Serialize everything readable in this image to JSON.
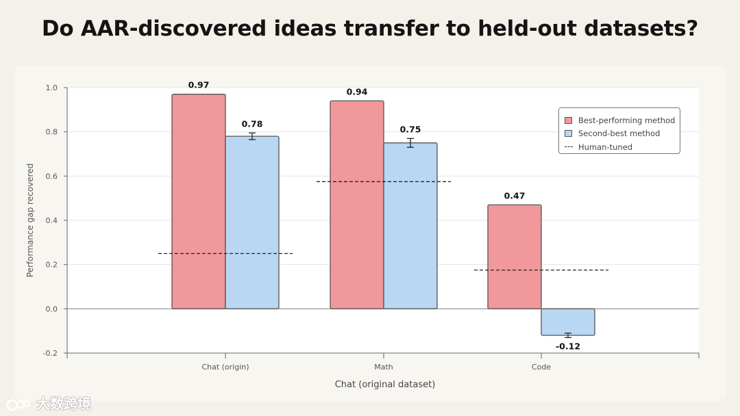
{
  "title": "Do AAR-discovered ideas transfer to held-out datasets?",
  "watermark": "大数跨境",
  "colors": {
    "best": "#f0989a",
    "second": "#b9d6f2",
    "outline": "#555555",
    "human": "#222222"
  },
  "chart_data": {
    "type": "bar",
    "categories": [
      "Chat (origin)",
      "Math",
      "Code"
    ],
    "series": [
      {
        "name": "Best-performing method",
        "values": [
          0.97,
          0.94,
          0.47
        ],
        "labels": [
          "0.97",
          "0.94",
          "0.47"
        ]
      },
      {
        "name": "Second-best method",
        "values": [
          0.78,
          0.75,
          -0.12
        ],
        "labels": [
          "0.78",
          "0.75",
          "-0.12"
        ],
        "error": [
          0.015,
          0.02,
          0.01
        ]
      }
    ],
    "human_tuned": {
      "name": "Human-tuned",
      "values": [
        0.25,
        0.575,
        0.175
      ]
    },
    "xlabel": "Chat (original dataset)",
    "ylabel": "Performance gap recovered",
    "ylim": [
      -0.2,
      1.0
    ],
    "yticks": [
      "-0.2",
      "0.0",
      "0.2",
      "0.4",
      "0.6",
      "0.8",
      "1.0"
    ],
    "grid": true,
    "legend_position": "top-right"
  }
}
